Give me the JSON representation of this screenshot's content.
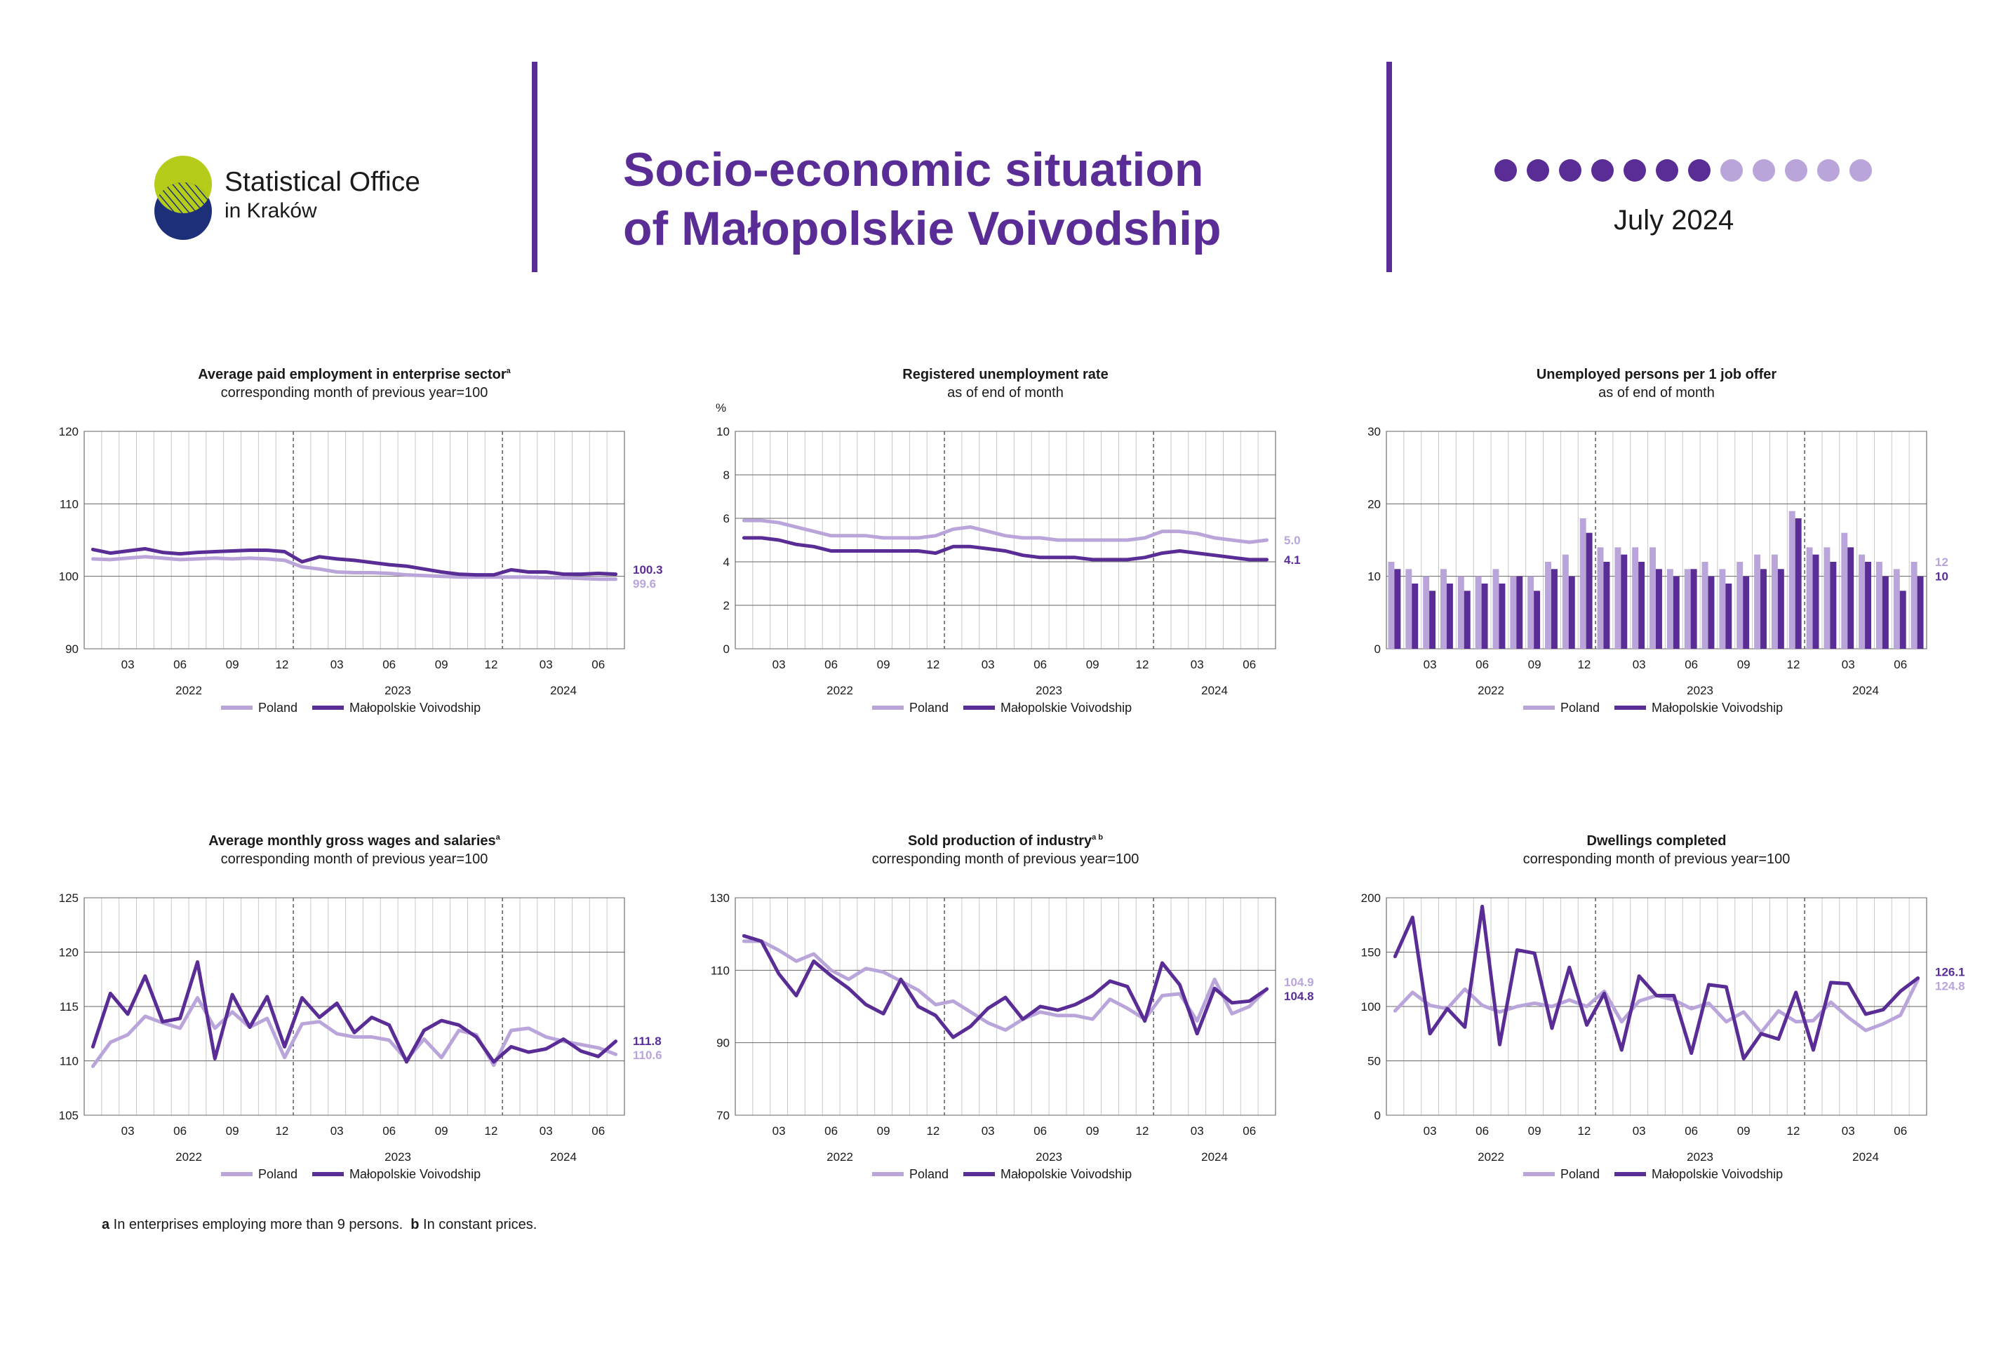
{
  "header": {
    "logo_line1": "Statistical Office",
    "logo_line2": "in Kraków",
    "title_line1": "Socio-economic situation",
    "title_line2": "of Małopolskie Voivodship",
    "date": "July 2024",
    "dots_filled": 7,
    "dots_total": 12,
    "colors": {
      "accent": "#5a2d96",
      "light": "#b9a5da",
      "logo_green": "#b5cc1a",
      "logo_navy": "#1e2f7a"
    }
  },
  "footnote": {
    "a_mark": "a",
    "a_text": " In enterprises employing more than 9 persons.",
    "b_mark": "b",
    "b_text": " In constant prices."
  },
  "chart_data": [
    {
      "id": "employment",
      "type": "line",
      "title": "Average paid employment in enterprise sector",
      "title_sup": "a",
      "subtitle": "corresponding month of previous year=100",
      "unit_label": "",
      "ylim": [
        90,
        120
      ],
      "yticks": [
        90,
        100,
        110,
        120
      ],
      "month_ticks": [
        "03",
        "06",
        "09",
        "12",
        "03",
        "06",
        "09",
        "12",
        "03",
        "06"
      ],
      "years": [
        "2022",
        "2023",
        "2024"
      ],
      "legend": [
        "Poland",
        "Małopolskie Voivodship"
      ],
      "series": [
        {
          "name": "Poland",
          "values": [
            102.4,
            102.3,
            102.5,
            102.7,
            102.5,
            102.3,
            102.4,
            102.5,
            102.4,
            102.5,
            102.4,
            102.2,
            101.3,
            101.0,
            100.6,
            100.5,
            100.5,
            100.4,
            100.2,
            100.1,
            100.0,
            99.9,
            99.9,
            99.9,
            99.9,
            99.9,
            99.8,
            99.8,
            99.7,
            99.6,
            99.6
          ]
        },
        {
          "name": "Małopolskie Voivodship",
          "values": [
            103.7,
            103.2,
            103.5,
            103.8,
            103.3,
            103.1,
            103.3,
            103.4,
            103.5,
            103.6,
            103.6,
            103.4,
            102.0,
            102.7,
            102.4,
            102.2,
            101.9,
            101.6,
            101.4,
            101.0,
            100.6,
            100.3,
            100.2,
            100.2,
            100.9,
            100.6,
            100.6,
            100.3,
            100.3,
            100.4,
            100.3
          ]
        }
      ],
      "end_labels": [
        "99.6",
        "100.3"
      ]
    },
    {
      "id": "unemployment",
      "type": "line",
      "title": "Registered unemployment rate",
      "title_sup": "",
      "subtitle": "as of end of month",
      "unit_label": "%",
      "ylim": [
        0,
        10
      ],
      "yticks": [
        0,
        2,
        4,
        6,
        8,
        10
      ],
      "month_ticks": [
        "03",
        "06",
        "09",
        "12",
        "03",
        "06",
        "09",
        "12",
        "03",
        "06"
      ],
      "years": [
        "2022",
        "2023",
        "2024"
      ],
      "legend": [
        "Poland",
        "Małopolskie Voivodship"
      ],
      "series": [
        {
          "name": "Poland",
          "values": [
            5.9,
            5.9,
            5.8,
            5.6,
            5.4,
            5.2,
            5.2,
            5.2,
            5.1,
            5.1,
            5.1,
            5.2,
            5.5,
            5.6,
            5.4,
            5.2,
            5.1,
            5.1,
            5.0,
            5.0,
            5.0,
            5.0,
            5.0,
            5.1,
            5.4,
            5.4,
            5.3,
            5.1,
            5.0,
            4.9,
            5.0
          ]
        },
        {
          "name": "Małopolskie Voivodship",
          "values": [
            5.1,
            5.1,
            5.0,
            4.8,
            4.7,
            4.5,
            4.5,
            4.5,
            4.5,
            4.5,
            4.5,
            4.4,
            4.7,
            4.7,
            4.6,
            4.5,
            4.3,
            4.2,
            4.2,
            4.2,
            4.1,
            4.1,
            4.1,
            4.2,
            4.4,
            4.5,
            4.4,
            4.3,
            4.2,
            4.1,
            4.1
          ]
        }
      ],
      "end_labels": [
        "5.0",
        "4.1"
      ]
    },
    {
      "id": "per_offer",
      "type": "bar",
      "title": "Unemployed persons per 1 job offer",
      "title_sup": "",
      "subtitle": "as of end of month",
      "unit_label": "",
      "ylim": [
        0,
        30
      ],
      "yticks": [
        0,
        10,
        20,
        30
      ],
      "month_ticks": [
        "03",
        "06",
        "09",
        "12",
        "03",
        "06",
        "09",
        "12",
        "03",
        "06"
      ],
      "years": [
        "2022",
        "2023",
        "2024"
      ],
      "legend": [
        "Poland",
        "Małopolskie Voivodship"
      ],
      "series": [
        {
          "name": "Poland",
          "values": [
            12,
            11,
            10,
            11,
            10,
            10,
            11,
            10,
            10,
            12,
            13,
            18,
            14,
            14,
            14,
            14,
            11,
            11,
            12,
            11,
            12,
            13,
            13,
            19,
            14,
            14,
            16,
            13,
            12,
            11,
            12
          ]
        },
        {
          "name": "Małopolskie Voivodship",
          "values": [
            11,
            9,
            8,
            9,
            8,
            9,
            9,
            10,
            8,
            11,
            10,
            16,
            12,
            13,
            12,
            11,
            10,
            11,
            10,
            9,
            10,
            11,
            11,
            18,
            13,
            12,
            14,
            12,
            10,
            8,
            10
          ]
        }
      ],
      "end_labels": [
        "12",
        "10"
      ]
    },
    {
      "id": "wages",
      "type": "line",
      "title": "Average monthly gross wages and salaries",
      "title_sup": "a",
      "subtitle": "corresponding month of previous year=100",
      "unit_label": "",
      "ylim": [
        105,
        125
      ],
      "yticks": [
        105,
        110,
        115,
        120,
        125
      ],
      "month_ticks": [
        "03",
        "06",
        "09",
        "12",
        "03",
        "06",
        "09",
        "12",
        "03",
        "06"
      ],
      "years": [
        "2022",
        "2023",
        "2024"
      ],
      "legend": [
        "Poland",
        "Małopolskie Voivodship"
      ],
      "series": [
        {
          "name": "Poland",
          "values": [
            109.5,
            111.7,
            112.4,
            114.1,
            113.5,
            113.0,
            115.8,
            113.0,
            114.5,
            113.1,
            113.9,
            110.3,
            113.4,
            113.6,
            112.5,
            112.2,
            112.2,
            111.9,
            110.1,
            112.0,
            110.3,
            112.8,
            112.4,
            109.6,
            112.8,
            113.0,
            112.2,
            111.8,
            111.5,
            111.2,
            110.6
          ]
        },
        {
          "name": "Małopolskie Voivodship",
          "values": [
            111.3,
            116.2,
            114.3,
            117.8,
            113.6,
            113.9,
            119.1,
            110.2,
            116.1,
            113.1,
            115.9,
            111.3,
            115.8,
            114.0,
            115.3,
            112.6,
            114.0,
            113.3,
            109.9,
            112.8,
            113.7,
            113.3,
            112.2,
            109.9,
            111.3,
            110.8,
            111.1,
            112.0,
            110.9,
            110.4,
            111.8
          ]
        }
      ],
      "end_labels": [
        "110.6",
        "111.8"
      ]
    },
    {
      "id": "industry",
      "type": "line",
      "title": "Sold production of industry",
      "title_sup": "a b",
      "subtitle": "corresponding month of previous year=100",
      "unit_label": "",
      "ylim": [
        70,
        130
      ],
      "yticks": [
        70,
        90,
        110,
        130
      ],
      "month_ticks": [
        "03",
        "06",
        "09",
        "12",
        "03",
        "06",
        "09",
        "12",
        "03",
        "06"
      ],
      "years": [
        "2022",
        "2023",
        "2024"
      ],
      "legend": [
        "Poland",
        "Małopolskie Voivodship"
      ],
      "series": [
        {
          "name": "Poland",
          "values": [
            118.0,
            118.0,
            115.5,
            112.5,
            114.5,
            110.0,
            107.5,
            110.5,
            109.5,
            107.0,
            104.5,
            100.5,
            101.5,
            98.5,
            95.5,
            93.5,
            96.5,
            98.5,
            97.5,
            97.5,
            96.5,
            102.0,
            99.5,
            96.5,
            103.0,
            103.5,
            96.0,
            107.5,
            98.0,
            100.0,
            104.9
          ]
        },
        {
          "name": "Małopolskie Voivodship",
          "values": [
            119.5,
            118.0,
            109.0,
            103.0,
            112.5,
            108.5,
            105.0,
            100.5,
            98.0,
            107.5,
            100.0,
            97.5,
            91.5,
            94.5,
            99.5,
            102.5,
            96.5,
            100.0,
            99.0,
            100.5,
            103.0,
            107.0,
            105.5,
            96.0,
            112.0,
            106.0,
            92.5,
            105.0,
            101.0,
            101.5,
            104.8
          ]
        }
      ],
      "end_labels": [
        "104.9",
        "104.8"
      ]
    },
    {
      "id": "dwellings",
      "type": "line",
      "title": "Dwellings completed",
      "title_sup": "",
      "subtitle": "corresponding month of previous year=100",
      "unit_label": "",
      "ylim": [
        0,
        200
      ],
      "yticks": [
        0,
        50,
        100,
        150,
        200
      ],
      "month_ticks": [
        "03",
        "06",
        "09",
        "12",
        "03",
        "06",
        "09",
        "12",
        "03",
        "06"
      ],
      "years": [
        "2022",
        "2023",
        "2024"
      ],
      "legend": [
        "Poland",
        "Małopolskie Voivodship"
      ],
      "series": [
        {
          "name": "Poland",
          "values": [
            96,
            113,
            101,
            98,
            116,
            101,
            95,
            100,
            103,
            100,
            106,
            100,
            114,
            86,
            105,
            110,
            106,
            98,
            103,
            86,
            95,
            76,
            96,
            86,
            87,
            104,
            90,
            78,
            84,
            92,
            124.8
          ]
        },
        {
          "name": "Małopolskie Voivodship",
          "values": [
            146,
            182,
            75,
            98,
            81,
            192,
            65,
            152,
            149,
            80,
            136,
            83,
            112,
            60,
            128,
            110,
            110,
            57,
            120,
            118,
            52,
            75,
            70,
            113,
            60,
            122,
            121,
            93,
            97,
            114,
            126.1
          ]
        }
      ],
      "end_labels": [
        "124.8",
        "126.1"
      ]
    }
  ]
}
